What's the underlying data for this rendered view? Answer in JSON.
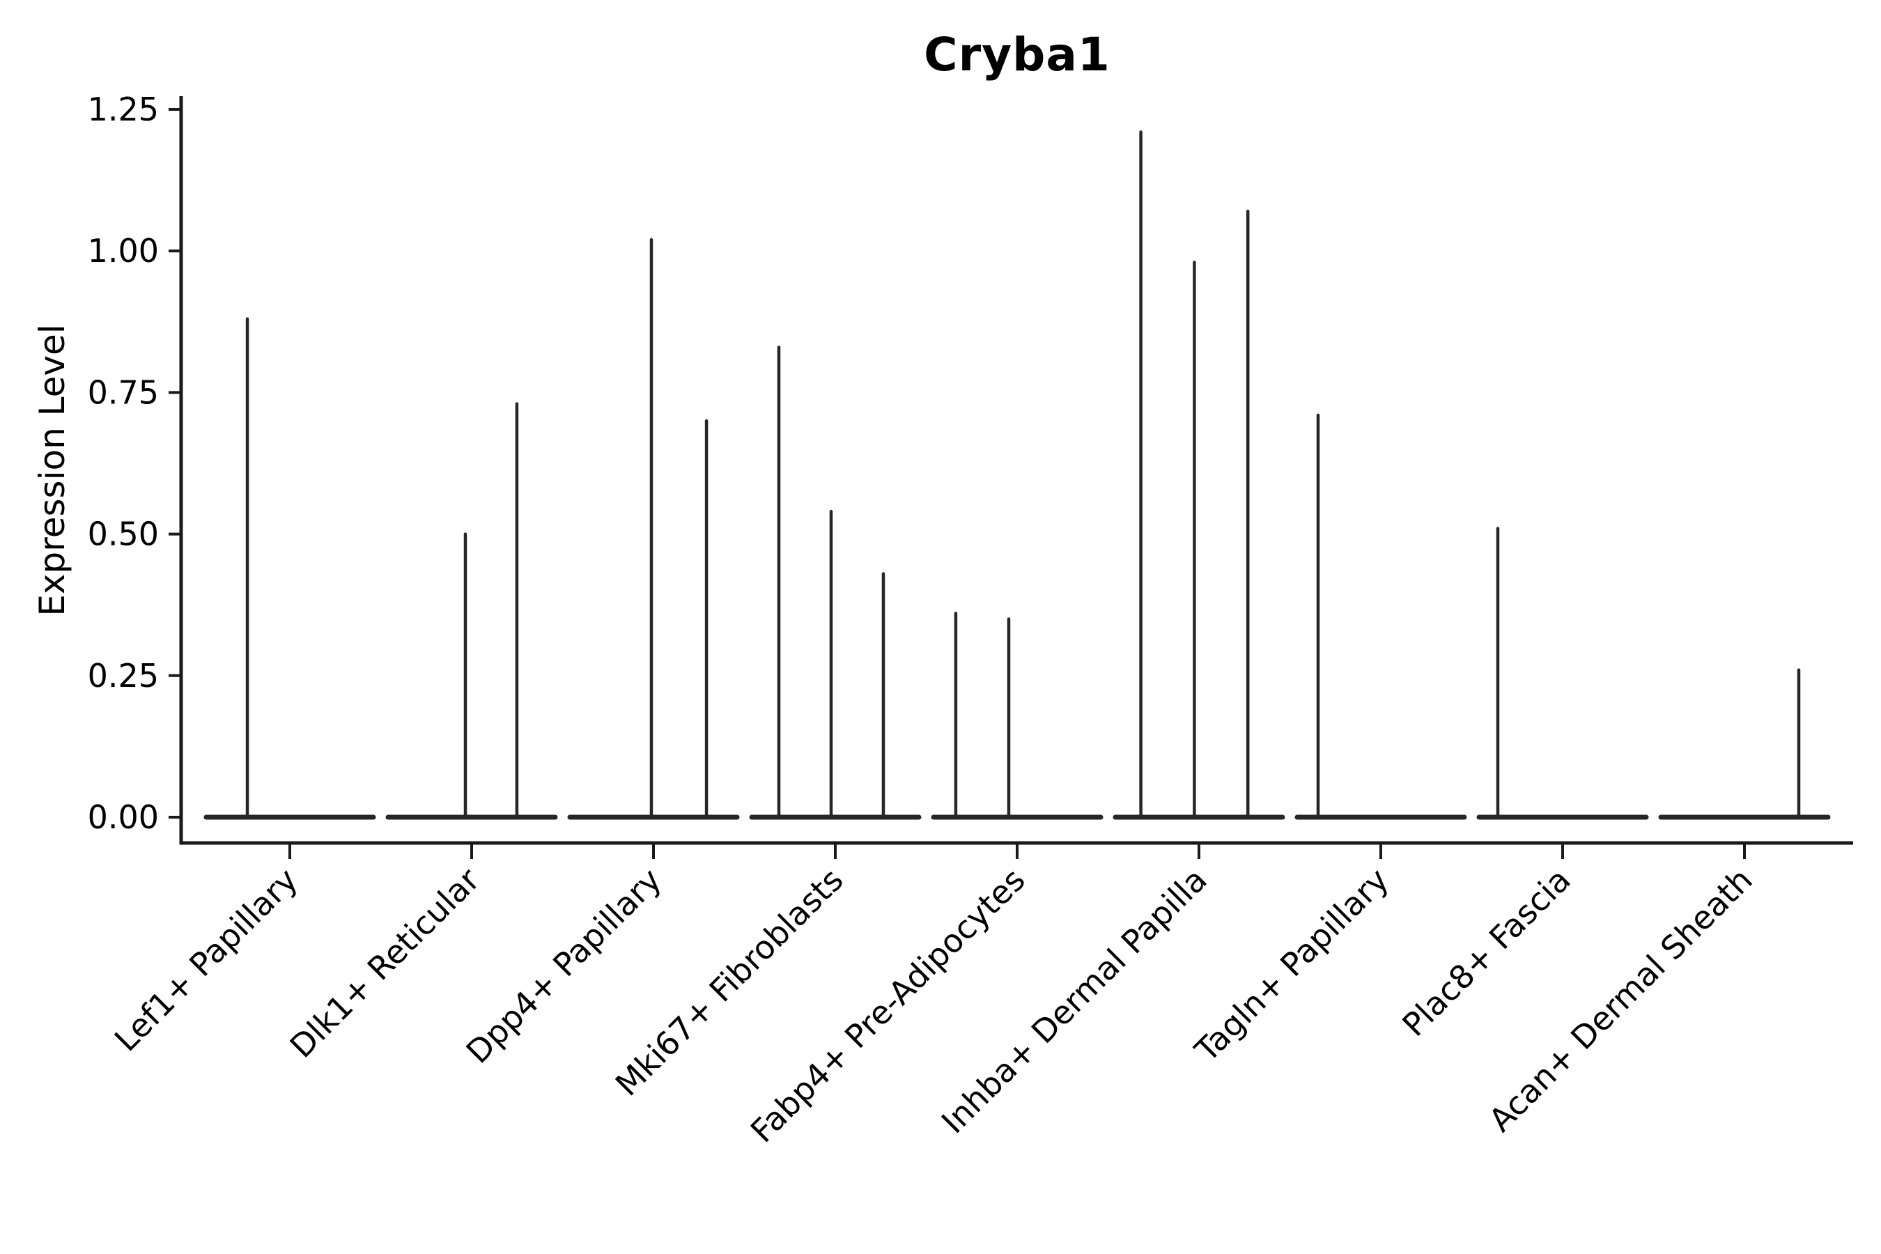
{
  "chart_data": {
    "type": "violin",
    "title": "Cryba1",
    "ylabel": "Expression Level",
    "xlabel": "",
    "ylim": [
      0,
      1.25
    ],
    "yticks": [
      0.0,
      0.25,
      0.5,
      0.75,
      1.0,
      1.25
    ],
    "ytick_labels": [
      "0.00",
      "0.25",
      "0.50",
      "0.75",
      "1.00",
      "1.25"
    ],
    "grid": false,
    "legend": "none",
    "x_label_rotation_deg": 45,
    "categories": [
      "Lef1+ Papillary",
      "Dlk1+ Reticular",
      "Dpp4+ Papillary",
      "Mki67+ Fibroblasts",
      "Fabp4+ Pre-Adipocytes",
      "Inhba+ Dermal Papilla",
      "Tagln+ Papillary",
      "Plac8+ Fascia",
      "Acan+ Dermal Sheath"
    ],
    "groups": [
      {
        "label": "Lef1+ Papillary",
        "tick": 0.065,
        "baseline": [
          0.015,
          0.115
        ],
        "spikes": [
          {
            "x": 0.0396,
            "max": 0.88
          }
        ]
      },
      {
        "label": "Dlk1+ Reticular",
        "tick": 0.17375,
        "baseline": [
          0.12375,
          0.22375
        ],
        "spikes": [
          {
            "x": 0.17,
            "max": 0.5
          },
          {
            "x": 0.2008,
            "max": 0.73
          }
        ]
      },
      {
        "label": "Dpp4+ Papillary",
        "tick": 0.2825,
        "baseline": [
          0.2325,
          0.3325
        ],
        "spikes": [
          {
            "x": 0.28125,
            "max": 1.02
          },
          {
            "x": 0.3142,
            "max": 0.7
          }
        ]
      },
      {
        "label": "Mki67+ Fibroblasts",
        "tick": 0.39125,
        "baseline": [
          0.34125,
          0.44125
        ],
        "spikes": [
          {
            "x": 0.3575,
            "max": 0.83
          },
          {
            "x": 0.38875,
            "max": 0.54
          },
          {
            "x": 0.42,
            "max": 0.43
          }
        ]
      },
      {
        "label": "Fabp4+ Pre-Adipocytes",
        "tick": 0.5,
        "baseline": [
          0.45,
          0.55
        ],
        "spikes": [
          {
            "x": 0.4633,
            "max": 0.36
          },
          {
            "x": 0.495,
            "max": 0.35
          }
        ]
      },
      {
        "label": "Inhba+ Dermal Papilla",
        "tick": 0.60875,
        "baseline": [
          0.55875,
          0.65875
        ],
        "spikes": [
          {
            "x": 0.574,
            "max": 1.21
          },
          {
            "x": 0.606,
            "max": 0.98
          },
          {
            "x": 0.638,
            "max": 1.07
          }
        ]
      },
      {
        "label": "Tagln+ Papillary",
        "tick": 0.7175,
        "baseline": [
          0.6675,
          0.7675
        ],
        "spikes": [
          {
            "x": 0.68,
            "max": 0.71
          }
        ]
      },
      {
        "label": "Plac8+ Fascia",
        "tick": 0.82625,
        "baseline": [
          0.77625,
          0.87625
        ],
        "spikes": [
          {
            "x": 0.7875,
            "max": 0.51
          }
        ]
      },
      {
        "label": "Acan+ Dermal Sheath",
        "tick": 0.935,
        "baseline": [
          0.885,
          0.985
        ],
        "spikes": [
          {
            "x": 0.9675,
            "max": 0.26
          }
        ]
      }
    ],
    "style": {
      "line_color": "#262626",
      "spine_color": "#1a1a1a",
      "text_color": "#000000",
      "background": "#ffffff"
    }
  }
}
